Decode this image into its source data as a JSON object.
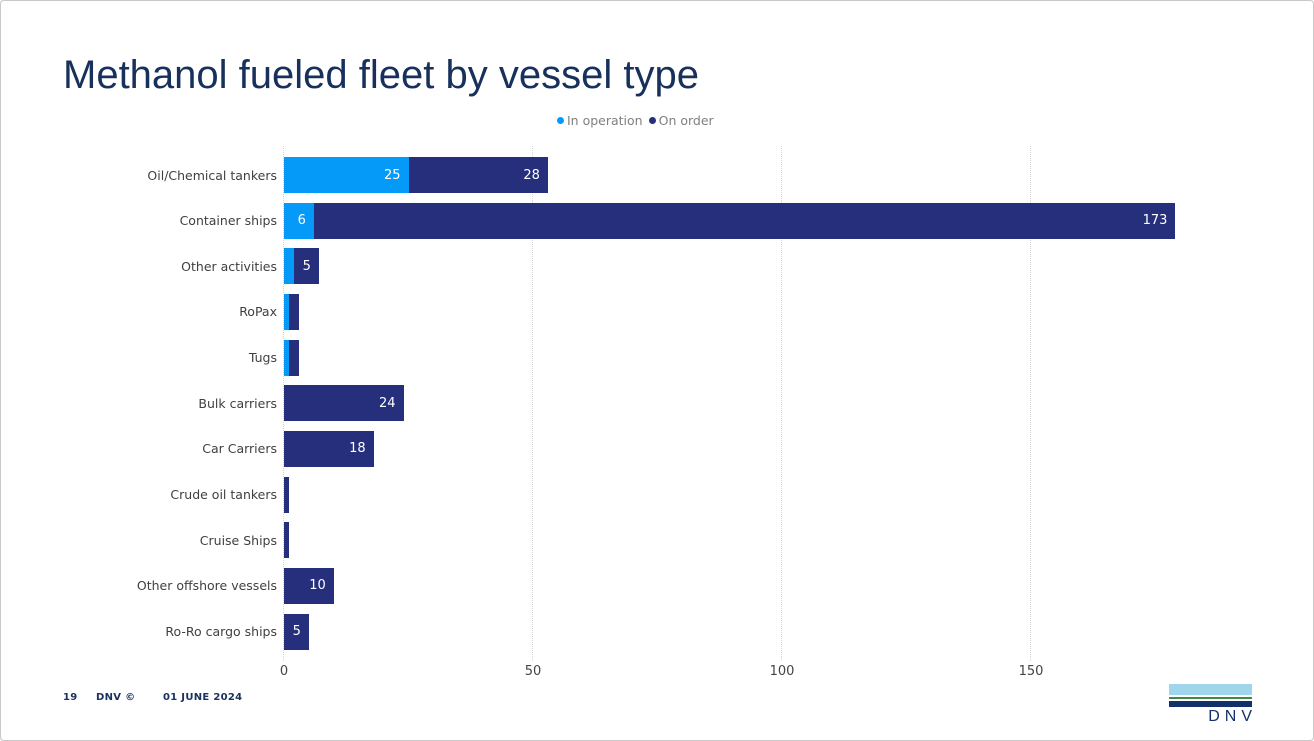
{
  "slide": {
    "title": "Methanol fueled fleet by vessel type",
    "footer": {
      "page": "19",
      "brand": "DNV ©",
      "date": "01 JUNE 2024"
    },
    "logo_text": "DNV"
  },
  "colors": {
    "in_operation": "#059AF8",
    "on_order": "#252F7C",
    "title": "#18305C",
    "category_label": "#404040",
    "legend_text": "#808080",
    "gridline": "#D4D4D4",
    "footer_text": "#1B3160",
    "logo_light_blue": "#A0D6EC",
    "logo_green": "#3C8C46",
    "logo_navy": "#12316B"
  },
  "chart_data": {
    "type": "bar",
    "orientation": "horizontal",
    "stacked": true,
    "title": "Methanol fueled fleet by vessel type",
    "xlabel": "",
    "ylabel": "",
    "xlim": [
      0,
      182
    ],
    "xticks": [
      0,
      50,
      100,
      150
    ],
    "grid": "vertical-dotted",
    "legend_position": "top",
    "value_label_min": 5,
    "categories": [
      "Oil/Chemical tankers",
      "Container ships",
      "Other activities",
      "RoPax",
      "Tugs",
      "Bulk carriers",
      "Car Carriers",
      "Crude oil tankers",
      "Cruise Ships",
      "Other offshore vessels",
      "Ro-Ro cargo ships"
    ],
    "series": [
      {
        "name": "In operation",
        "color": "#059AF8",
        "values": [
          25,
          6,
          2,
          1,
          1,
          0,
          0,
          0,
          0,
          0,
          0
        ]
      },
      {
        "name": "On order",
        "color": "#252F7C",
        "values": [
          28,
          173,
          5,
          2,
          2,
          24,
          18,
          1,
          1,
          10,
          5
        ]
      }
    ]
  }
}
